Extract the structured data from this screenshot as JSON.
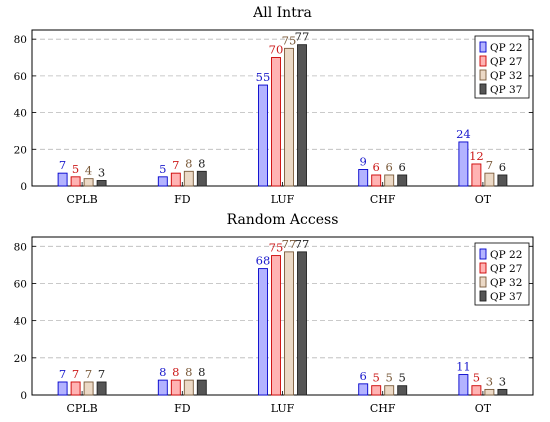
{
  "chart_data": [
    {
      "type": "bar",
      "title": "All Intra",
      "categories": [
        "CPLB",
        "FD",
        "LUF",
        "CHF",
        "OT"
      ],
      "ylim": [
        0,
        85
      ],
      "yticks": [
        0,
        20,
        40,
        60,
        80
      ],
      "grid": "horizontal-dashed",
      "legend_placement": "top-right",
      "series": [
        {
          "name": "QP 22",
          "values": [
            7,
            5,
            55,
            9,
            24
          ],
          "fill": "#b3b3ff",
          "stroke": "#0000cc",
          "label_color": "#1a1acc"
        },
        {
          "name": "QP 27",
          "values": [
            5,
            7,
            70,
            6,
            12
          ],
          "fill": "#ffb3b3",
          "stroke": "#cc0000",
          "label_color": "#cc1a1a"
        },
        {
          "name": "QP 32",
          "values": [
            4,
            8,
            75,
            6,
            7
          ],
          "fill": "#ecd9c6",
          "stroke": "#7a5a3a",
          "label_color": "#7a5a3a"
        },
        {
          "name": "QP 37",
          "values": [
            3,
            8,
            77,
            6,
            6
          ],
          "fill": "#555555",
          "stroke": "#222222",
          "label_color": "#222222"
        }
      ]
    },
    {
      "type": "bar",
      "title": "Random Access",
      "categories": [
        "CPLB",
        "FD",
        "LUF",
        "CHF",
        "OT"
      ],
      "ylim": [
        0,
        85
      ],
      "yticks": [
        0,
        20,
        40,
        60,
        80
      ],
      "grid": "horizontal-dashed",
      "legend_placement": "top-right",
      "series": [
        {
          "name": "QP 22",
          "values": [
            7,
            8,
            68,
            6,
            11
          ],
          "fill": "#b3b3ff",
          "stroke": "#0000cc",
          "label_color": "#1a1acc"
        },
        {
          "name": "QP 27",
          "values": [
            7,
            8,
            75,
            5,
            5
          ],
          "fill": "#ffb3b3",
          "stroke": "#cc0000",
          "label_color": "#cc1a1a"
        },
        {
          "name": "QP 32",
          "values": [
            7,
            8,
            77,
            5,
            3
          ],
          "fill": "#ecd9c6",
          "stroke": "#7a5a3a",
          "label_color": "#7a5a3a"
        },
        {
          "name": "QP 37",
          "values": [
            7,
            8,
            77,
            5,
            3
          ],
          "fill": "#555555",
          "stroke": "#222222",
          "label_color": "#222222"
        }
      ]
    }
  ]
}
